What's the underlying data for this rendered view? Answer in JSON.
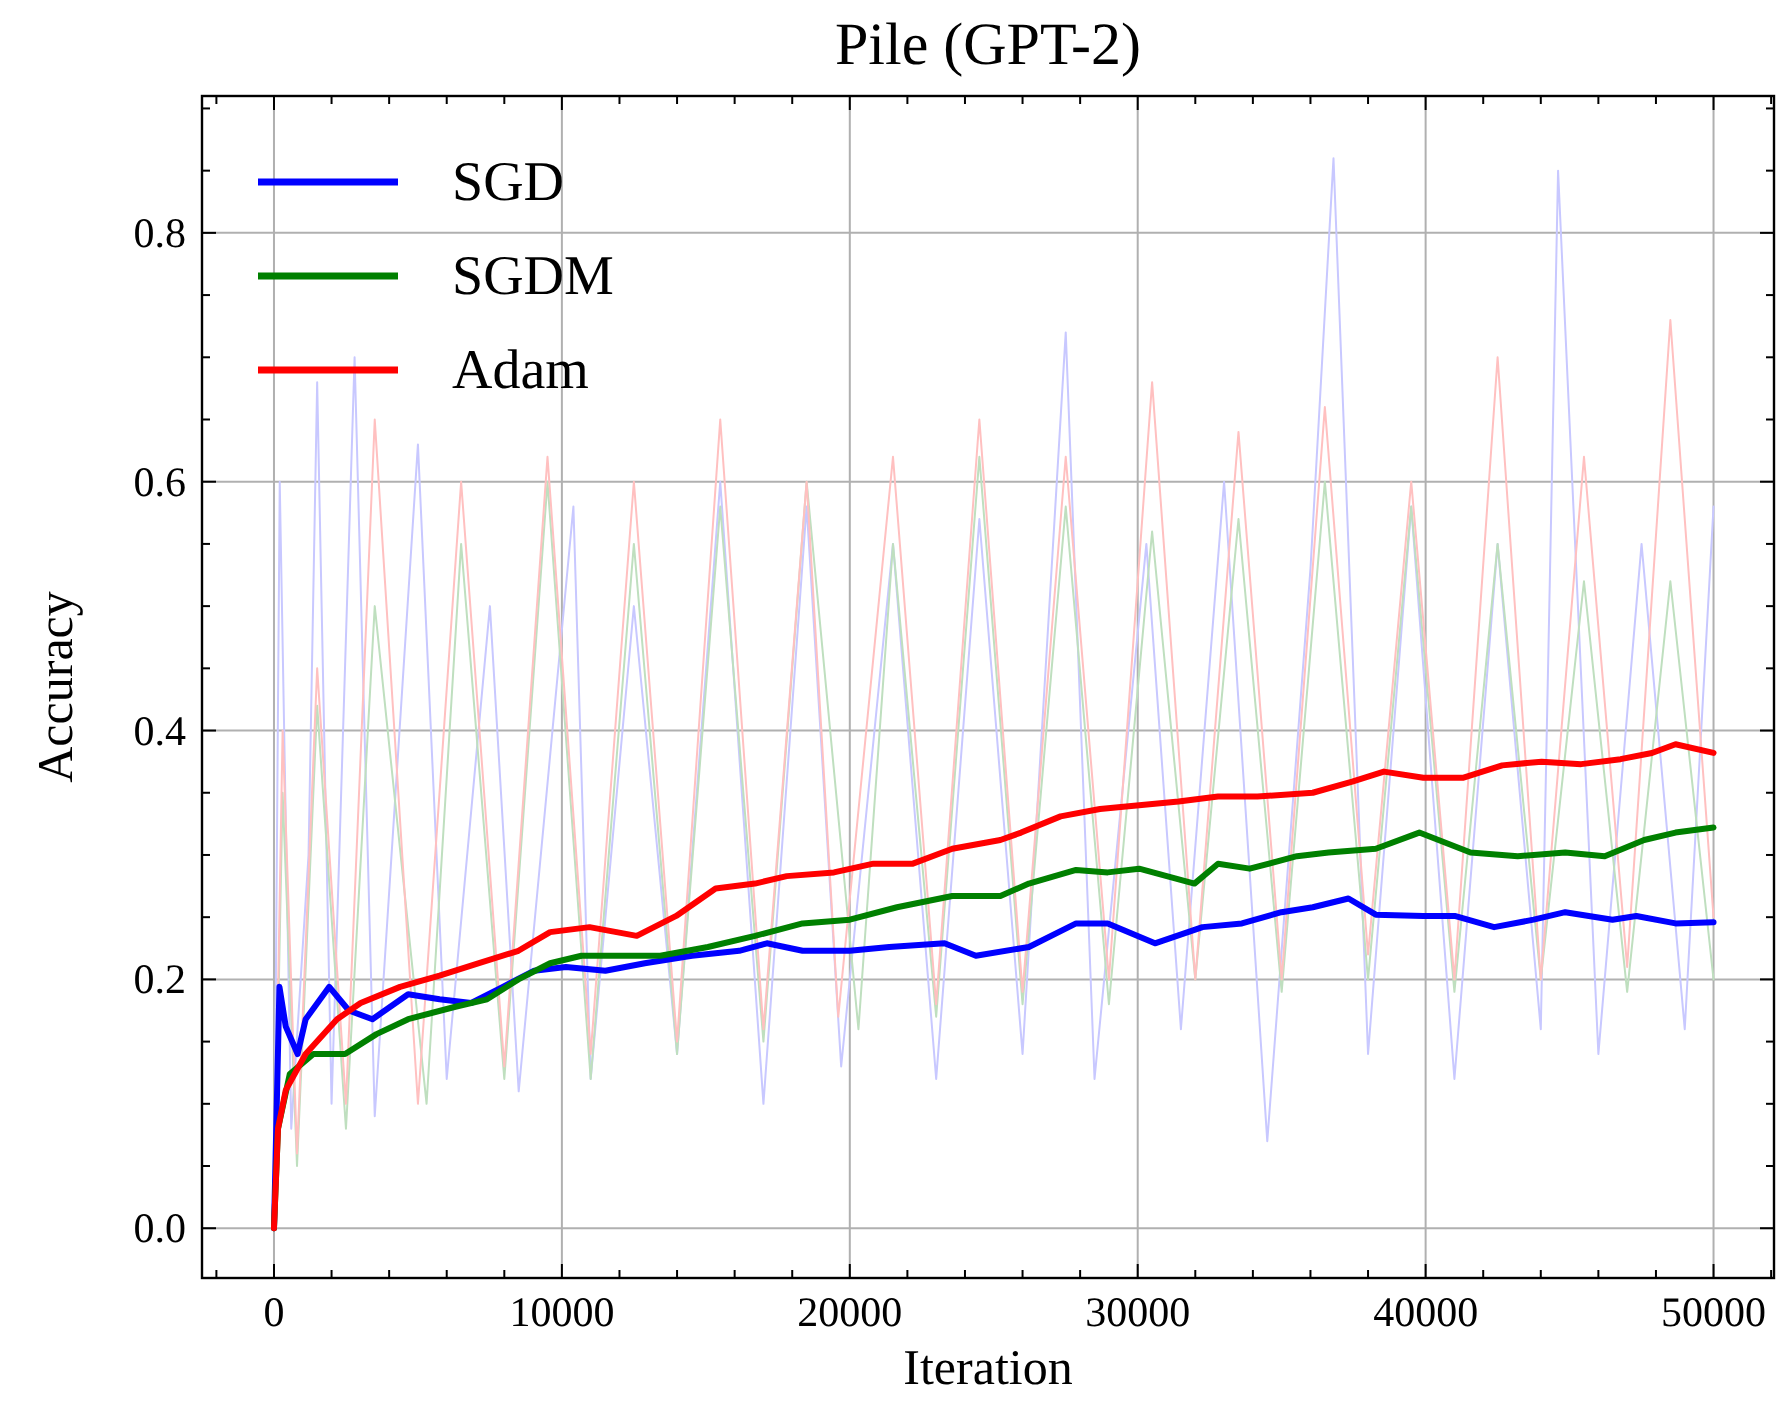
{
  "chart_data": {
    "type": "line",
    "title": "Pile (GPT-2)",
    "xlabel": "Iteration",
    "ylabel": "Accuracy",
    "xlim": [
      -2500,
      52100
    ],
    "ylim": [
      -0.04,
      0.91
    ],
    "xticks": [
      0,
      {
        "value": 2000,
        "label": null
      },
      {
        "value": 4000,
        "label": null
      },
      {
        "value": 6000,
        "label": null
      },
      {
        "value": 8000,
        "label": null
      },
      10000,
      {
        "value": 12000,
        "label": null
      },
      {
        "value": 14000,
        "label": null
      },
      {
        "value": 16000,
        "label": null
      },
      {
        "value": 18000,
        "label": null
      },
      20000,
      {
        "value": 22000,
        "label": null
      },
      {
        "value": 24000,
        "label": null
      },
      {
        "value": 26000,
        "label": null
      },
      {
        "value": 28000,
        "label": null
      },
      30000,
      {
        "value": 32000,
        "label": null
      },
      {
        "value": 34000,
        "label": null
      },
      {
        "value": 36000,
        "label": null
      },
      {
        "value": 38000,
        "label": null
      },
      40000,
      {
        "value": 42000,
        "label": null
      },
      {
        "value": 44000,
        "label": null
      },
      {
        "value": 46000,
        "label": null
      },
      {
        "value": 48000,
        "label": null
      },
      50000,
      {
        "value": -2000,
        "label": null
      },
      {
        "value": 52000,
        "label": null
      }
    ],
    "yticks": [
      {
        "value": 0,
        "label": "0.0"
      },
      {
        "value": 0.05,
        "label": null
      },
      {
        "value": 0.1,
        "label": null
      },
      {
        "value": 0.15,
        "label": null
      },
      0.2,
      {
        "value": 0.25,
        "label": null
      },
      {
        "value": 0.3,
        "label": null
      },
      {
        "value": 0.35,
        "label": null
      },
      0.4,
      {
        "value": 0.45,
        "label": null
      },
      {
        "value": 0.5,
        "label": null
      },
      {
        "value": 0.55,
        "label": null
      },
      0.6,
      {
        "value": 0.65,
        "label": null
      },
      {
        "value": 0.7,
        "label": null
      },
      {
        "value": 0.75,
        "label": null
      },
      0.8,
      {
        "value": 0.85,
        "label": null
      },
      {
        "value": 0.9,
        "label": null
      }
    ],
    "grid": true,
    "legend": "top left",
    "line_style": "solid",
    "marker": "none",
    "series": [
      {
        "color": "#c8c8ff",
        "x": [
          0,
          200,
          600,
          1200,
          1500,
          2000,
          2800,
          3500,
          5000,
          6000,
          7500,
          8500,
          10400,
          11000,
          12500,
          14000,
          15500,
          17000,
          18500,
          19700,
          21500,
          23000,
          24500,
          26000,
          27500,
          28500,
          30300,
          31500,
          33000,
          34500,
          36000,
          36800,
          38000,
          39500,
          41000,
          42500,
          44000,
          44600,
          46000,
          47500,
          49000,
          50000
        ],
        "values": [
          0,
          0.6,
          0.08,
          0.3,
          0.68,
          0.1,
          0.7,
          0.09,
          0.63,
          0.12,
          0.5,
          0.11,
          0.58,
          0.12,
          0.5,
          0.14,
          0.6,
          0.1,
          0.58,
          0.13,
          0.55,
          0.12,
          0.57,
          0.14,
          0.72,
          0.12,
          0.55,
          0.16,
          0.6,
          0.07,
          0.53,
          0.86,
          0.14,
          0.58,
          0.12,
          0.55,
          0.16,
          0.85,
          0.14,
          0.55,
          0.16,
          0.58
        ]
      },
      {
        "color": "#bfdfbf",
        "x": [
          0,
          300,
          800,
          1500,
          2500,
          3500,
          5300,
          6500,
          8000,
          9500,
          11000,
          12500,
          14000,
          15500,
          17000,
          18500,
          20300,
          21500,
          23000,
          24500,
          26000,
          27500,
          29000,
          30500,
          32000,
          33500,
          35000,
          36500,
          38000,
          39500,
          41000,
          42500,
          44000,
          45500,
          47000,
          48500,
          50000
        ],
        "values": [
          0,
          0.35,
          0.05,
          0.42,
          0.08,
          0.5,
          0.1,
          0.55,
          0.12,
          0.6,
          0.12,
          0.55,
          0.14,
          0.58,
          0.15,
          0.6,
          0.16,
          0.55,
          0.17,
          0.62,
          0.18,
          0.58,
          0.18,
          0.56,
          0.2,
          0.57,
          0.19,
          0.6,
          0.2,
          0.58,
          0.19,
          0.55,
          0.2,
          0.52,
          0.19,
          0.52,
          0.2
        ]
      },
      {
        "color": "#ffc0c0",
        "x": [
          0,
          300,
          800,
          1500,
          2500,
          3500,
          5000,
          6500,
          8000,
          9500,
          11000,
          12500,
          14000,
          15500,
          17000,
          18500,
          19600,
          21500,
          23000,
          24500,
          26000,
          27500,
          29000,
          30500,
          32000,
          33500,
          35000,
          36500,
          38000,
          39500,
          41000,
          42500,
          44000,
          45500,
          47000,
          48500,
          50000
        ],
        "values": [
          0,
          0.4,
          0.06,
          0.45,
          0.1,
          0.65,
          0.1,
          0.6,
          0.13,
          0.62,
          0.14,
          0.6,
          0.15,
          0.65,
          0.16,
          0.6,
          0.17,
          0.62,
          0.18,
          0.65,
          0.19,
          0.62,
          0.2,
          0.68,
          0.2,
          0.64,
          0.2,
          0.66,
          0.22,
          0.6,
          0.2,
          0.7,
          0.2,
          0.62,
          0.21,
          0.73,
          0.25
        ]
      },
      {
        "name": "SGD",
        "color": "#0000ff",
        "x": [
          0,
          190,
          410,
          820,
          1100,
          1920,
          2600,
          3420,
          4660,
          5750,
          6850,
          7950,
          9040,
          10140,
          11510,
          12880,
          14520,
          16160,
          17120,
          18360,
          20000,
          21370,
          23290,
          24380,
          26220,
          27860,
          28960,
          30600,
          32250,
          33620,
          34990,
          36080,
          37320,
          38270,
          39920,
          41010,
          42380,
          43750,
          44850,
          46490,
          47320,
          48680,
          50000
        ],
        "values": [
          0,
          0.194,
          0.162,
          0.14,
          0.168,
          0.194,
          0.175,
          0.168,
          0.188,
          0.184,
          0.181,
          0.194,
          0.207,
          0.21,
          0.207,
          0.213,
          0.219,
          0.223,
          0.229,
          0.223,
          0.223,
          0.226,
          0.229,
          0.219,
          0.226,
          0.245,
          0.245,
          0.229,
          0.242,
          0.245,
          0.254,
          0.258,
          0.265,
          0.252,
          0.251,
          0.251,
          0.242,
          0.248,
          0.254,
          0.248,
          0.251,
          0.245,
          0.246
        ]
      },
      {
        "name": "SGDM",
        "color": "#008000",
        "x": [
          0,
          140,
          550,
          1370,
          2470,
          3560,
          4660,
          6300,
          7400,
          8490,
          9590,
          10680,
          11780,
          13420,
          15070,
          16710,
          18360,
          20000,
          21640,
          23560,
          25230,
          26220,
          27860,
          28960,
          30050,
          31970,
          32790,
          33890,
          35530,
          36630,
          38270,
          39780,
          41560,
          43200,
          44850,
          46220,
          47590,
          48680,
          50000
        ],
        "values": [
          0,
          0.08,
          0.124,
          0.14,
          0.14,
          0.156,
          0.168,
          0.178,
          0.184,
          0.2,
          0.213,
          0.219,
          0.219,
          0.219,
          0.226,
          0.235,
          0.245,
          0.248,
          0.258,
          0.267,
          0.267,
          0.277,
          0.288,
          0.286,
          0.289,
          0.277,
          0.293,
          0.289,
          0.299,
          0.302,
          0.305,
          0.318,
          0.302,
          0.299,
          0.302,
          0.299,
          0.312,
          0.318,
          0.322
        ]
      },
      {
        "name": "Adam",
        "color": "#ff0000",
        "x": [
          0,
          140,
          410,
          1100,
          2190,
          3010,
          4380,
          5750,
          7120,
          8490,
          9590,
          10960,
          12600,
          13970,
          15340,
          16710,
          17810,
          19450,
          20820,
          22190,
          23560,
          25230,
          25950,
          27320,
          28690,
          30050,
          31420,
          32790,
          34160,
          36080,
          37450,
          38550,
          39920,
          41290,
          42660,
          44030,
          45400,
          46770,
          47860,
          48680,
          50000
        ],
        "values": [
          0,
          0.08,
          0.111,
          0.14,
          0.168,
          0.181,
          0.194,
          0.203,
          0.213,
          0.223,
          0.238,
          0.242,
          0.235,
          0.251,
          0.273,
          0.277,
          0.283,
          0.286,
          0.293,
          0.293,
          0.305,
          0.312,
          0.318,
          0.331,
          0.337,
          0.34,
          0.343,
          0.347,
          0.347,
          0.35,
          0.359,
          0.367,
          0.362,
          0.362,
          0.372,
          0.375,
          0.373,
          0.377,
          0.382,
          0.389,
          0.382
        ]
      }
    ]
  }
}
